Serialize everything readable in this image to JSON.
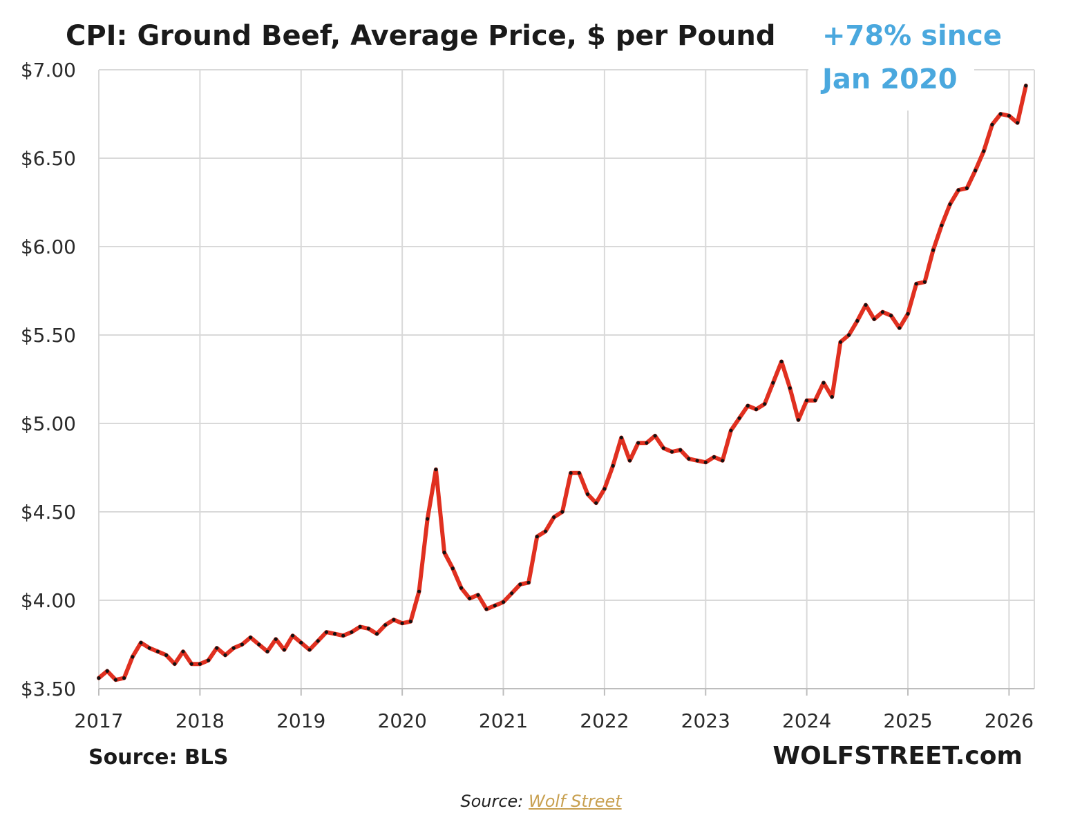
{
  "chart_data": {
    "type": "line",
    "title": "CPI: Ground Beef, Average Price, $ per Pound",
    "annotation_lines": [
      "+78% since",
      "Jan 2020"
    ],
    "ylim": [
      3.5,
      7.0
    ],
    "xlim": [
      2017.0,
      2026.25
    ],
    "y_ticks": [
      7.0,
      6.5,
      6.0,
      5.5,
      5.0,
      4.5,
      4.0,
      3.5
    ],
    "y_tick_labels": [
      "$7.00",
      "$6.50",
      "$6.00",
      "$5.50",
      "$5.00",
      "$4.50",
      "$4.00",
      "$3.50"
    ],
    "x_ticks": [
      2017,
      2018,
      2019,
      2020,
      2021,
      2022,
      2023,
      2024,
      2025,
      2026
    ],
    "x_tick_labels": [
      "2017",
      "2018",
      "2019",
      "2020",
      "2021",
      "2022",
      "2023",
      "2024",
      "2025",
      "2026"
    ],
    "grid": true,
    "line_color": "#e03020",
    "marker_color": "#111111",
    "source_label": "Source: BLS",
    "brand_label": "WOLFSTREET.com",
    "x_start_label": "Jan 2017",
    "x_step_label": "monthly",
    "values": [
      3.56,
      3.6,
      3.55,
      3.56,
      3.68,
      3.76,
      3.73,
      3.71,
      3.69,
      3.64,
      3.71,
      3.64,
      3.64,
      3.66,
      3.73,
      3.69,
      3.73,
      3.75,
      3.79,
      3.75,
      3.71,
      3.78,
      3.72,
      3.8,
      3.76,
      3.72,
      3.77,
      3.82,
      3.81,
      3.8,
      3.82,
      3.85,
      3.84,
      3.81,
      3.86,
      3.89,
      3.87,
      3.88,
      4.05,
      4.46,
      4.74,
      4.27,
      4.18,
      4.07,
      4.01,
      4.03,
      3.95,
      3.97,
      3.99,
      4.04,
      4.09,
      4.1,
      4.36,
      4.39,
      4.47,
      4.5,
      4.72,
      4.72,
      4.6,
      4.55,
      4.63,
      4.76,
      4.92,
      4.79,
      4.89,
      4.89,
      4.93,
      4.86,
      4.84,
      4.85,
      4.8,
      4.79,
      4.78,
      4.81,
      4.79,
      4.96,
      5.03,
      5.1,
      5.08,
      5.11,
      5.23,
      5.35,
      5.2,
      5.02,
      5.13,
      5.13,
      5.23,
      5.15,
      5.46,
      5.5,
      5.58,
      5.67,
      5.59,
      5.63,
      5.61,
      5.54,
      5.62,
      5.79,
      5.8,
      5.98,
      6.12,
      6.24,
      6.32,
      6.33,
      6.43,
      6.54,
      6.69,
      6.75,
      6.74,
      6.7,
      6.91
    ]
  },
  "caption": {
    "prefix": "Source: ",
    "link_text": "Wolf Street"
  }
}
